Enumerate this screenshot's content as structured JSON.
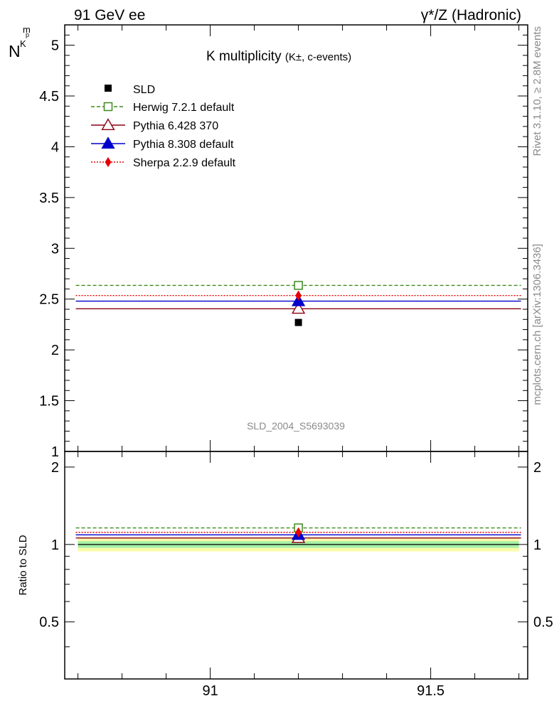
{
  "header": {
    "left": "91 GeV ee",
    "right": "γ*/Z (Hadronic)"
  },
  "chart_data": {
    "type": "scatter",
    "title": "K multiplicity",
    "title_suffix": "(K±, c-events)",
    "ylabel_main": "N",
    "ylabel_main_sub": "K",
    "ylabel_main_sup": "p",
    "ylabel_main_tail": "m",
    "ylabel_ratio": "Ratio to SLD",
    "analysis_id": "SLD_2004_S5693039",
    "side_text_top": "Rivet 3.1.10, ≥ 2.8M events",
    "side_text_bottom": "mcplots.cern.ch [arXiv:1306.3436]",
    "xlim": [
      90.67,
      91.72
    ],
    "ylim_main": [
      1.0,
      5.2
    ],
    "ylim_ratio": [
      0.3,
      2.3
    ],
    "x_ticks": [
      91,
      91.5
    ],
    "x_tick_labels": [
      "91",
      "91.5"
    ],
    "y_ticks_main": [
      1,
      1.5,
      2,
      2.5,
      3,
      3.5,
      4,
      4.5,
      5
    ],
    "y_tick_labels_main": [
      "1",
      "1.5",
      "2",
      "2.5",
      "3",
      "3.5",
      "4",
      "4.5",
      "5"
    ],
    "y_ticks_ratio": [
      0.5,
      1,
      2
    ],
    "y_tick_labels_ratio": [
      "0.5",
      "1",
      "2"
    ],
    "bin": {
      "x": 91.2,
      "x_low": 90.7,
      "x_high": 91.7
    },
    "data": {
      "name": "SLD",
      "y": 2.27,
      "color": "#000000",
      "marker": "square-filled"
    },
    "series": [
      {
        "name": "Herwig 7.2.1 default",
        "y": 2.635,
        "ratio": 1.16,
        "color": "#3c8a1c",
        "marker": "square-open",
        "dash": "5,3"
      },
      {
        "name": "Pythia 6.428 370",
        "y": 2.405,
        "ratio": 1.06,
        "color": "#8b0010",
        "marker": "triangle-open",
        "dash": ""
      },
      {
        "name": "Pythia 8.308 default",
        "y": 2.48,
        "ratio": 1.09,
        "color": "#0000cc",
        "marker": "triangle-filled",
        "dash": ""
      },
      {
        "name": "Sherpa 2.2.9 default",
        "y": 2.535,
        "ratio": 1.115,
        "color": "#e80000",
        "marker": "diamond-filled",
        "dash": "2,2"
      }
    ],
    "ratio_bands": [
      {
        "low": 0.94,
        "high": 1.06,
        "color": "#fbfba8"
      },
      {
        "low": 0.97,
        "high": 1.03,
        "color": "#a6f0a6"
      }
    ],
    "grid": false,
    "legend_position": "top-left"
  }
}
